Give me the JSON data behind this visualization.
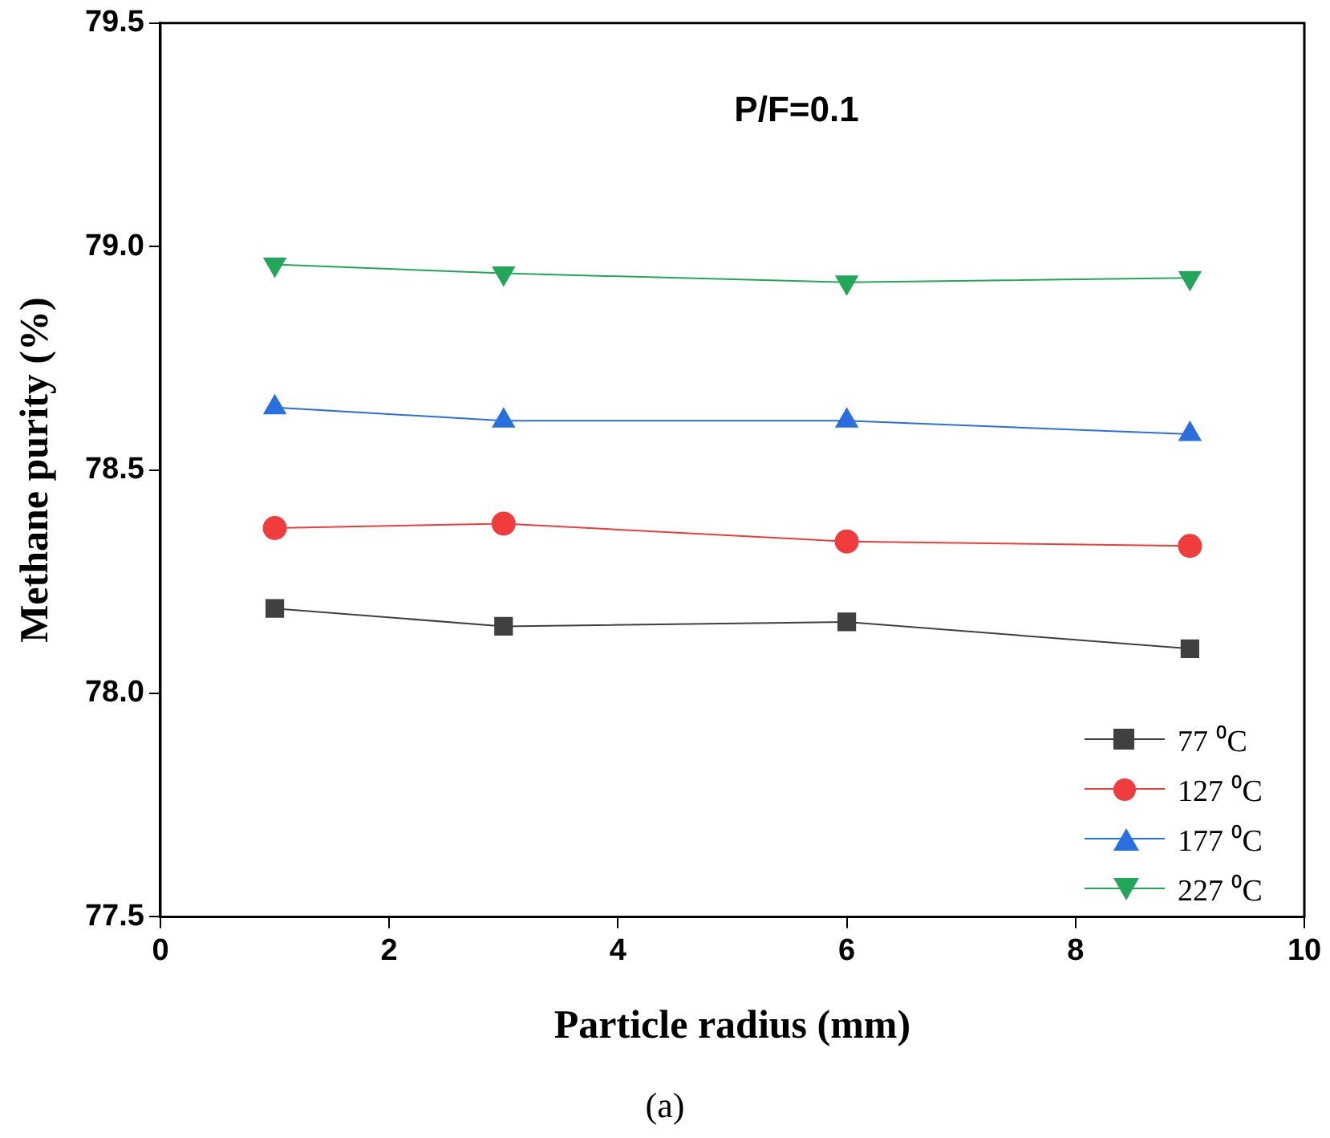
{
  "chart_data": {
    "type": "line",
    "title": "P/F=0.1",
    "xlabel": "Particle radius (mm)",
    "ylabel": "Methane purity (%)",
    "annotations": [
      "(a)"
    ],
    "x": [
      1,
      3,
      6,
      9
    ],
    "series": [
      {
        "name": "77 ⁰C",
        "color": "#404040",
        "marker": "square",
        "values": [
          78.19,
          78.15,
          78.16,
          78.1
        ]
      },
      {
        "name": "127 ⁰C",
        "color": "#f03c3c",
        "marker": "circle",
        "values": [
          78.37,
          78.38,
          78.34,
          78.33
        ]
      },
      {
        "name": "177 ⁰C",
        "color": "#2a6fe0",
        "marker": "triangle",
        "values": [
          78.64,
          78.61,
          78.61,
          78.58
        ]
      },
      {
        "name": "227 ⁰C",
        "color": "#22a75a",
        "marker": "triangle-down",
        "values": [
          78.96,
          78.94,
          78.92,
          78.93
        ]
      }
    ],
    "xlim": [
      0,
      10
    ],
    "xticks": [
      0,
      2,
      4,
      6,
      8,
      10
    ],
    "ylim": [
      77.5,
      79.5
    ],
    "yticks": [
      77.5,
      {
        "value": 78,
        "label": "78.0"
      },
      78.5,
      {
        "value": 79,
        "label": "79.0"
      },
      79.5
    ],
    "grid": false,
    "legend": "bottom right",
    "line_style": "solid"
  }
}
